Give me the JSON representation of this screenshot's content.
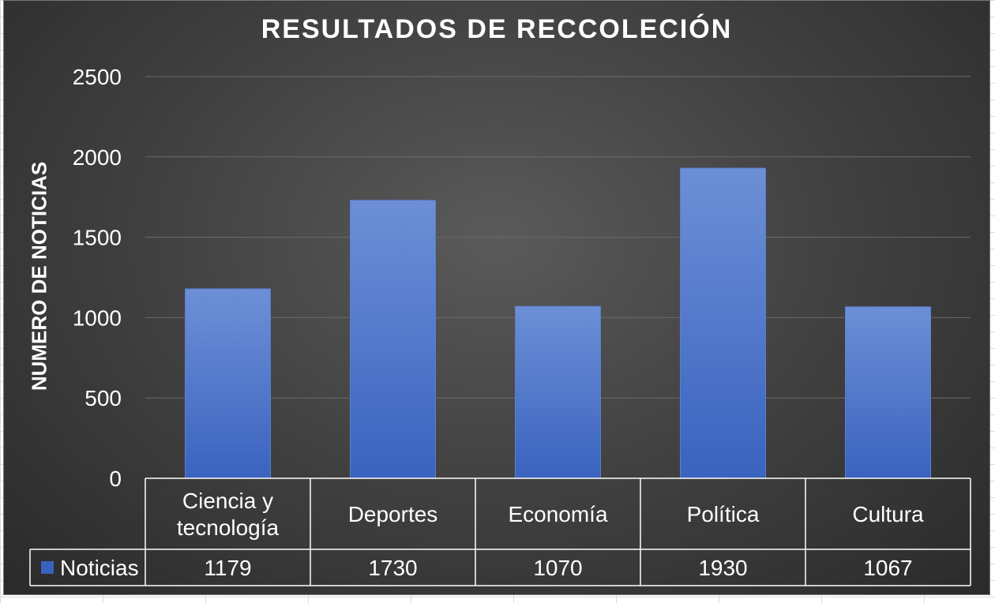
{
  "chart_data": {
    "type": "bar",
    "title": "RESULTADOS DE RECCOLECIÓN",
    "ylabel": "NUMERO DE NOTICIAS",
    "xlabel": "",
    "categories": [
      "Ciencia y tecnología",
      "Deportes",
      "Economía",
      "Política",
      "Cultura"
    ],
    "category_lines": [
      [
        "Ciencia y",
        "tecnología"
      ],
      [
        "Deportes"
      ],
      [
        "Economía"
      ],
      [
        "Política"
      ],
      [
        "Cultura"
      ]
    ],
    "series": [
      {
        "name": "Noticias",
        "values": [
          1179,
          1730,
          1070,
          1930,
          1067
        ],
        "color": "#4a72c8"
      }
    ],
    "ylim": [
      0,
      2500
    ],
    "yticks": [
      0,
      500,
      1000,
      1500,
      2000,
      2500
    ],
    "grid": true,
    "legend": "data-table-left",
    "data_table": true
  },
  "colors": {
    "background": "#3e3e3e",
    "text": "#ffffff",
    "gridline": "#6a6a6a",
    "bar_top": "#6d8fd6",
    "bar_bottom": "#3a63bf"
  }
}
